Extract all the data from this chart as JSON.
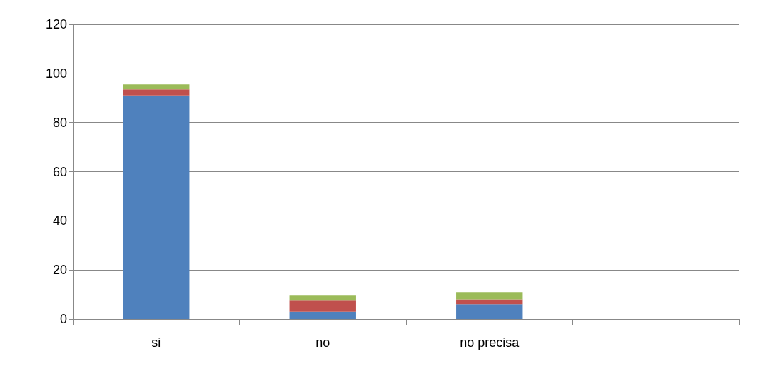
{
  "chart_data": {
    "type": "bar",
    "stacked": true,
    "categories": [
      "si",
      "no",
      "no precisa",
      null
    ],
    "series": [
      {
        "color": "#4f81bd",
        "values": [
          91,
          3,
          6,
          null
        ]
      },
      {
        "color": "#c0504d",
        "values": [
          2.5,
          4.5,
          2,
          null
        ]
      },
      {
        "color": "#9bbb59",
        "values": [
          2,
          2,
          3,
          null
        ]
      }
    ],
    "ylim": [
      0,
      120
    ],
    "yticks": [
      0,
      20,
      40,
      60,
      80,
      100,
      120
    ],
    "grid": "y",
    "legend": false
  }
}
